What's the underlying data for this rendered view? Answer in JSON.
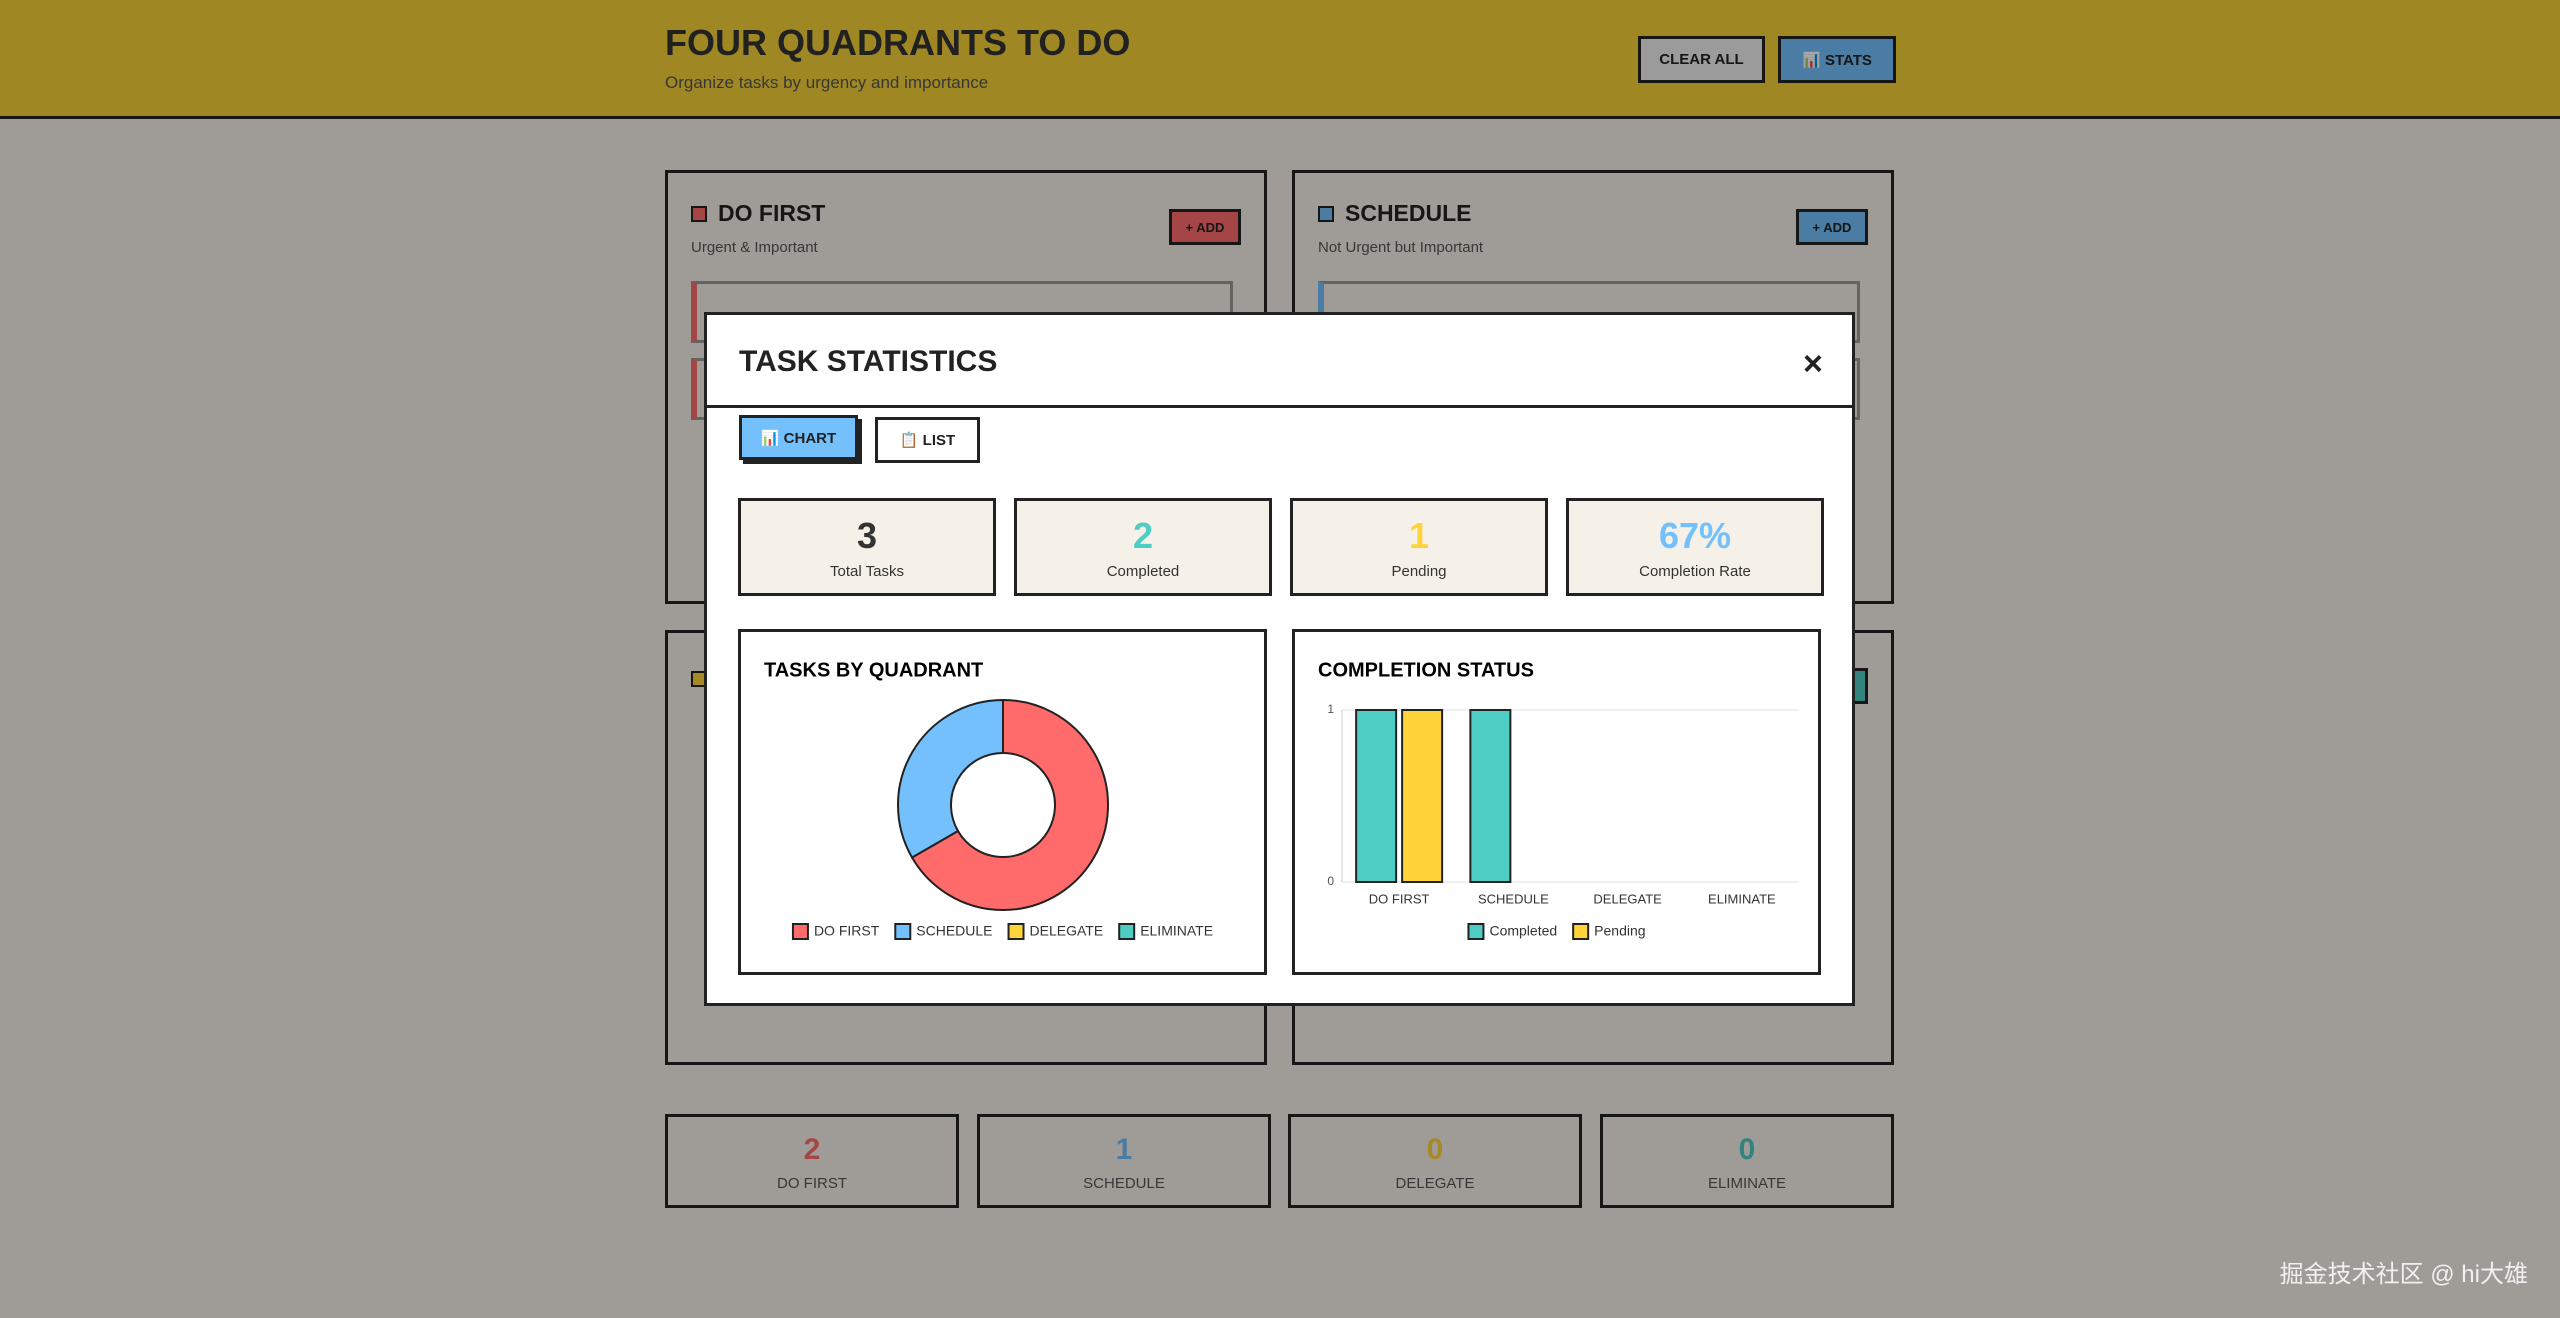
{
  "header": {
    "title": "FOUR QUADRANTS TO DO",
    "subtitle": "Organize tasks by urgency and importance",
    "buttons": [
      "CLEAR ALL",
      "📊 STATS"
    ]
  },
  "quadrants": [
    {
      "title": "DO FIRST",
      "subtitle": "Urgent & Important",
      "button": "+ ADD",
      "color": "#ff6b6b"
    },
    {
      "title": "SCHEDULE",
      "subtitle": "Not Urgent but Important",
      "button": "+ ADD",
      "color": "#74c0fc"
    }
  ],
  "summary": [
    {
      "value": 2,
      "label": "DO FIRST",
      "color": "#ff6b6b"
    },
    {
      "value": 1,
      "label": "SCHEDULE",
      "color": "#74c0fc"
    },
    {
      "value": 0,
      "label": "DELEGATE",
      "color": "#ffd43b"
    },
    {
      "value": 0,
      "label": "ELIMINATE",
      "color": "#4ecdc4"
    }
  ],
  "modal": {
    "title": "TASK STATISTICS",
    "close": "×",
    "tabs": [
      "📊 CHART",
      "📋 LIST"
    ],
    "stats": [
      {
        "value": 3,
        "label": "Total Tasks",
        "color": "#333333"
      },
      {
        "value": 2,
        "label": "Completed",
        "color": "#4ecdc4"
      },
      {
        "value": 1,
        "label": "Pending",
        "color": "#ffd43b"
      },
      {
        "value": "67%",
        "label": "Completion Rate",
        "color": "#74c0fc"
      }
    ]
  },
  "chart_data": [
    {
      "type": "pie",
      "title": "TASKS BY QUADRANT",
      "donut": true,
      "categories": [
        "DO FIRST",
        "SCHEDULE",
        "DELEGATE",
        "ELIMINATE"
      ],
      "values": [
        2,
        1,
        0,
        0
      ],
      "colors": [
        "#ff6b6b",
        "#74c0fc",
        "#ffd43b",
        "#4ecdc4"
      ]
    },
    {
      "type": "bar",
      "title": "COMPLETION STATUS",
      "categories": [
        "DO FIRST",
        "SCHEDULE",
        "DELEGATE",
        "ELIMINATE"
      ],
      "series": [
        {
          "name": "Completed",
          "color": "#4ecdc4",
          "values": [
            1,
            1,
            0,
            0
          ]
        },
        {
          "name": "Pending",
          "color": "#ffd43b",
          "values": [
            1,
            0,
            0,
            0
          ]
        }
      ],
      "ylim": [
        0,
        1
      ],
      "yticks": [
        0,
        1
      ],
      "grid": true
    }
  ],
  "watermark": "掘金技术社区 @ hi大雄"
}
